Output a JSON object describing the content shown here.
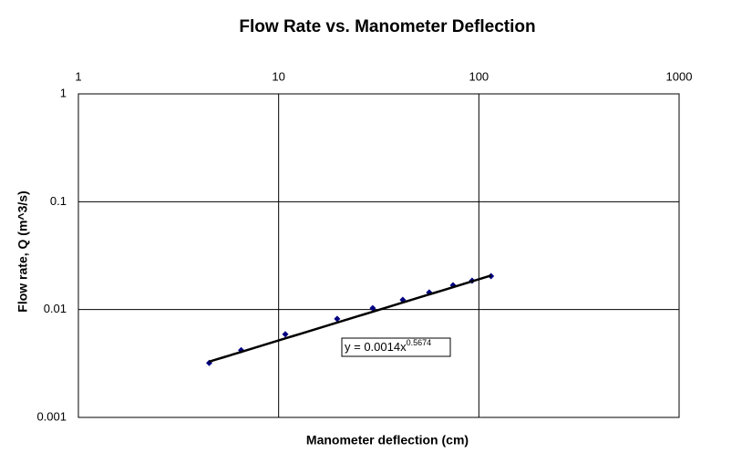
{
  "chart_data": {
    "type": "scatter",
    "title": "Flow Rate vs. Manometer Deflection",
    "x_label": "Manometer deflection (cm)",
    "y_label": "Flow rate, Q (m^3/s)",
    "x_scale": "log",
    "y_scale": "log",
    "grid": true,
    "color": "#000080",
    "x": [
      4.5,
      6.5,
      10.8,
      19.6,
      29.5,
      41.7,
      56.5,
      74.3,
      92.5,
      115
    ],
    "values": [
      0.0032,
      0.0042,
      0.0059,
      0.0082,
      0.0103,
      0.0123,
      0.0144,
      0.0168,
      0.0185,
      0.0204
    ],
    "xlim": [
      1,
      1000
    ],
    "xticks": [
      1,
      10,
      100,
      1000
    ],
    "ylim": [
      0.001,
      1
    ],
    "yticks": [
      0.001,
      0.01,
      0.1,
      1
    ],
    "trendline": {
      "type": "power",
      "coefficient": 0.0014,
      "exponent": 0.5674,
      "color": "#000000",
      "equation": "y = 0.0014x",
      "superscript": "0.5674"
    }
  }
}
